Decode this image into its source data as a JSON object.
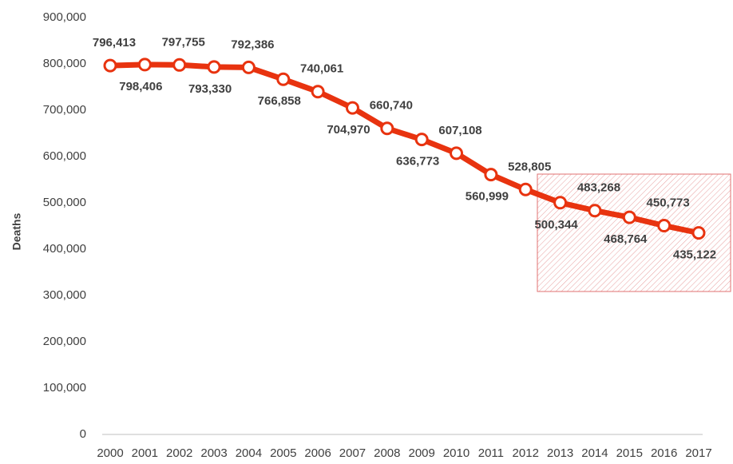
{
  "chart_data": {
    "type": "line",
    "y_label": "Deaths",
    "categories": [
      "2000",
      "2001",
      "2002",
      "2003",
      "2004",
      "2005",
      "2006",
      "2007",
      "2008",
      "2009",
      "2010",
      "2011",
      "2012",
      "2013",
      "2014",
      "2015",
      "2016",
      "2017"
    ],
    "values": [
      796413,
      798406,
      797755,
      793330,
      792386,
      766858,
      740061,
      704970,
      660740,
      636773,
      607108,
      560999,
      528805,
      500344,
      483268,
      468764,
      450773,
      435122
    ],
    "value_labels": [
      "796,413",
      "798,406",
      "797,755",
      "793,330",
      "792,386",
      "766,858",
      "740,061",
      "704,970",
      "660,740",
      "636,773",
      "607,108",
      "560,999",
      "528,805",
      "500,344",
      "483,268",
      "468,764",
      "450,773",
      "435,122"
    ],
    "color": "#e8330f",
    "ylim": [
      0,
      900000
    ],
    "yticks": [
      0,
      {
        "value": 100000,
        "label": "100,000"
      },
      {
        "value": 200000,
        "label": "200,000"
      },
      {
        "value": 300000,
        "label": "300,000"
      },
      {
        "value": 400000,
        "label": "400,000"
      },
      {
        "value": 500000,
        "label": "500,000"
      },
      {
        "value": 600000,
        "label": "600,000"
      },
      {
        "value": 700000,
        "label": "700,000"
      },
      {
        "value": 800000,
        "label": "800,000"
      },
      {
        "value": 900000,
        "label": "900,000"
      }
    ],
    "grid": false
  }
}
